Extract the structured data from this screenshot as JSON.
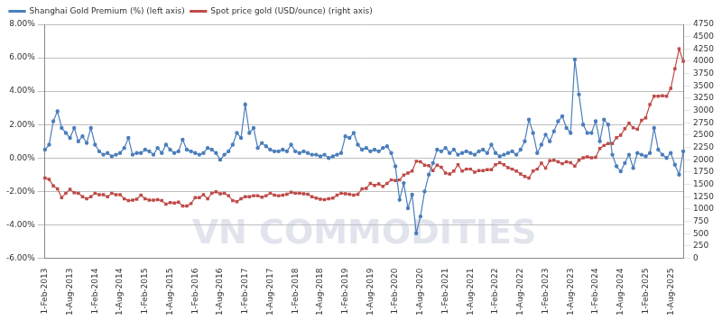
{
  "chart_data": {
    "type": "line",
    "categories": [
      "1-Feb-2013",
      null,
      null,
      null,
      null,
      null,
      "1-Aug-2013",
      null,
      null,
      null,
      null,
      null,
      "1-Feb-2014",
      null,
      null,
      null,
      null,
      null,
      "1-Aug-2014",
      null,
      null,
      null,
      null,
      null,
      "1-Feb-2015",
      null,
      null,
      null,
      null,
      null,
      "1-Aug-2015",
      null,
      null,
      null,
      null,
      null,
      "1-Feb-2016",
      null,
      null,
      null,
      null,
      null,
      "1-Aug-2016",
      null,
      null,
      null,
      null,
      null,
      "1-Feb-2017",
      null,
      null,
      null,
      null,
      null,
      "1-Aug-2017",
      null,
      null,
      null,
      null,
      null,
      "1-Feb-2018",
      null,
      null,
      null,
      null,
      null,
      "1-Aug-2018",
      null,
      null,
      null,
      null,
      null,
      "1-Feb-2019",
      null,
      null,
      null,
      null,
      null,
      "1-Aug-2019",
      null,
      null,
      null,
      null,
      null,
      "1-Feb-2020",
      null,
      null,
      null,
      null,
      null,
      "1-Aug-2020",
      null,
      null,
      null,
      null,
      null,
      "1-Feb-2021",
      null,
      null,
      null,
      null,
      null,
      "1-Aug-2021",
      null,
      null,
      null,
      null,
      null,
      "1-Feb-2022",
      null,
      null,
      null,
      null,
      null,
      "1-Aug-2022",
      null,
      null,
      null,
      null,
      null,
      "1-Feb-2023",
      null,
      null,
      null,
      null,
      null,
      "1-Aug-2023",
      null,
      null,
      null,
      null,
      null,
      "1-Feb-2024",
      null,
      null,
      null,
      null,
      null,
      "1-Aug-2024",
      null,
      null,
      null,
      null,
      null,
      "1-Feb-2025",
      null,
      null,
      null,
      null,
      null,
      "1-Aug-2025",
      null,
      null,
      null
    ],
    "series": [
      {
        "name": "Shanghai Gold Premium (%) (left axis)",
        "color": "#4a7ebb",
        "marker": "circle",
        "line_style": "solid",
        "values": [
          0.5,
          0.8,
          2.2,
          2.8,
          1.8,
          1.5,
          1.2,
          1.8,
          1.0,
          1.3,
          0.9,
          1.8,
          0.8,
          0.4,
          0.2,
          0.3,
          0.1,
          0.2,
          0.3,
          0.6,
          1.2,
          0.2,
          0.3,
          0.3,
          0.5,
          0.4,
          0.2,
          0.6,
          0.3,
          0.8,
          0.5,
          0.3,
          0.4,
          1.1,
          0.5,
          0.4,
          0.3,
          0.2,
          0.3,
          0.6,
          0.5,
          0.3,
          -0.1,
          0.2,
          0.4,
          0.8,
          1.5,
          1.2,
          3.2,
          1.5,
          1.8,
          0.6,
          0.9,
          0.7,
          0.5,
          0.4,
          0.4,
          0.5,
          0.4,
          0.8,
          0.4,
          0.3,
          0.4,
          0.3,
          0.2,
          0.2,
          0.1,
          0.2,
          0.0,
          0.1,
          0.2,
          0.3,
          1.3,
          1.2,
          1.5,
          0.8,
          0.5,
          0.6,
          0.4,
          0.5,
          0.4,
          0.6,
          0.7,
          0.3,
          -0.5,
          -2.5,
          -1.5,
          -3.0,
          -2.2,
          -4.5,
          -3.5,
          -2.0,
          -1.0,
          -0.3,
          0.5,
          0.4,
          0.6,
          0.3,
          0.5,
          0.2,
          0.3,
          0.4,
          0.3,
          0.2,
          0.4,
          0.5,
          0.3,
          0.8,
          0.3,
          0.1,
          0.2,
          0.3,
          0.4,
          0.2,
          0.5,
          1.0,
          2.3,
          1.5,
          0.3,
          0.8,
          1.4,
          1.0,
          1.6,
          2.2,
          2.5,
          1.8,
          1.5,
          5.9,
          3.8,
          2.0,
          1.5,
          1.5,
          2.2,
          1.0,
          2.3,
          2.0,
          0.2,
          -0.5,
          -0.8,
          -0.3,
          0.2,
          -0.6,
          0.3,
          0.2,
          0.1,
          0.3,
          1.8,
          0.5,
          0.2,
          0.0,
          0.3,
          -0.4,
          -1.0,
          0.4
        ]
      },
      {
        "name": "Spot price gold (USD/ounce) (right axis)",
        "color": "#be4b48",
        "marker": "square",
        "line_style": "solid",
        "axis": "y2",
        "values": [
          1630,
          1600,
          1470,
          1410,
          1230,
          1320,
          1400,
          1330,
          1320,
          1250,
          1210,
          1250,
          1320,
          1290,
          1290,
          1250,
          1320,
          1290,
          1290,
          1210,
          1170,
          1180,
          1200,
          1280,
          1210,
          1180,
          1180,
          1190,
          1170,
          1100,
          1130,
          1120,
          1140,
          1060,
          1060,
          1110,
          1230,
          1230,
          1290,
          1210,
          1320,
          1350,
          1310,
          1320,
          1270,
          1170,
          1150,
          1210,
          1250,
          1250,
          1270,
          1270,
          1240,
          1270,
          1320,
          1280,
          1270,
          1280,
          1300,
          1340,
          1320,
          1320,
          1310,
          1300,
          1250,
          1220,
          1200,
          1190,
          1210,
          1220,
          1280,
          1320,
          1310,
          1300,
          1280,
          1300,
          1410,
          1420,
          1520,
          1480,
          1510,
          1460,
          1520,
          1590,
          1580,
          1590,
          1690,
          1730,
          1770,
          1970,
          1960,
          1890,
          1880,
          1780,
          1890,
          1850,
          1730,
          1710,
          1770,
          1900,
          1770,
          1810,
          1810,
          1750,
          1780,
          1780,
          1800,
          1800,
          1900,
          1940,
          1900,
          1840,
          1810,
          1770,
          1710,
          1660,
          1630,
          1770,
          1810,
          1930,
          1830,
          1980,
          1990,
          1960,
          1920,
          1960,
          1940,
          1870,
          1990,
          2040,
          2060,
          2040,
          2050,
          2230,
          2290,
          2330,
          2330,
          2450,
          2500,
          2630,
          2740,
          2650,
          2620,
          2800,
          2850,
          3120,
          3290,
          3290,
          3300,
          3290,
          3450,
          3850,
          4250,
          4000
        ]
      }
    ],
    "ylim": [
      -6,
      8
    ],
    "yticks": [
      {
        "value": -6,
        "label": "-6.00%"
      },
      {
        "value": -4,
        "label": "-4.00%"
      },
      {
        "value": -2,
        "label": "-2.00%"
      },
      {
        "value": 0,
        "label": "0.00%"
      },
      {
        "value": 2,
        "label": "2.00%"
      },
      {
        "value": 4,
        "label": "4.00%"
      },
      {
        "value": 6,
        "label": "6.00%"
      },
      {
        "value": 8,
        "label": "8.00%"
      }
    ],
    "y2lim": [
      0,
      4750
    ],
    "y2ticks": [
      0,
      250,
      500,
      750,
      1000,
      1250,
      1500,
      1750,
      2000,
      2250,
      2500,
      2750,
      3000,
      3250,
      3500,
      3750,
      4000,
      4250,
      4500,
      4750
    ],
    "grid": true,
    "legend": "top-left",
    "annotations": [
      "VN COMMODITIES"
    ]
  }
}
